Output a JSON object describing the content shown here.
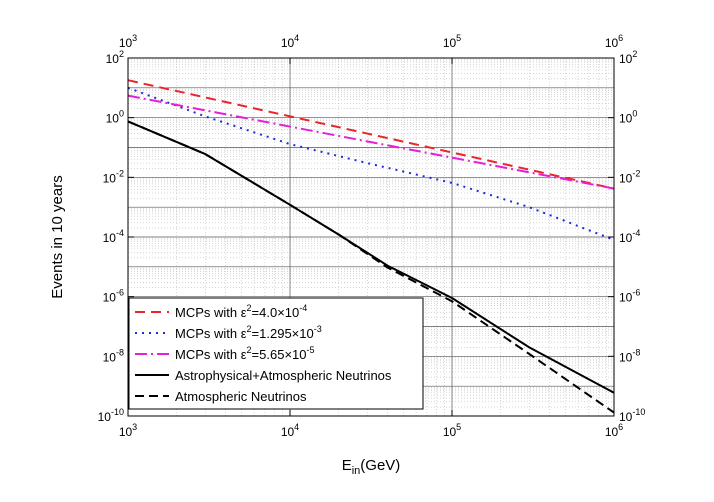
{
  "chart_data": {
    "type": "line",
    "xlabel_main": "E",
    "xlabel_sub": "in",
    "xlabel_unit": "(GeV)",
    "ylabel": "Events in 10 years",
    "x_scale": "log",
    "y_scale": "log",
    "xlim": [
      1000,
      1000000
    ],
    "ylim": [
      1e-10,
      100
    ],
    "grid": true,
    "legend_position": "lower-left",
    "x_ticks": [
      {
        "value": 1000,
        "base": "10",
        "exp": "3"
      },
      {
        "value": 10000,
        "base": "10",
        "exp": "4"
      },
      {
        "value": 100000,
        "base": "10",
        "exp": "5"
      },
      {
        "value": 1000000,
        "base": "10",
        "exp": "6"
      }
    ],
    "y_ticks": [
      {
        "value": 1e-10,
        "base": "10",
        "exp": "-10"
      },
      {
        "value": 1e-08,
        "base": "10",
        "exp": "-8"
      },
      {
        "value": 1e-06,
        "base": "10",
        "exp": "-6"
      },
      {
        "value": 0.0001,
        "base": "10",
        "exp": "-4"
      },
      {
        "value": 0.01,
        "base": "10",
        "exp": "-2"
      },
      {
        "value": 1,
        "base": "10",
        "exp": "0"
      },
      {
        "value": 100,
        "base": "10",
        "exp": "2"
      }
    ],
    "series": [
      {
        "legend_pre": "MCPs with ",
        "legend_eps": "ε",
        "legend_pow": "2",
        "legend_post": "=4.0×10",
        "legend_exp": "-4",
        "color": "#e8262b",
        "dash": "10,6",
        "x": [
          1000,
          1000000
        ],
        "y": [
          18,
          0.0042
        ]
      },
      {
        "legend_pre": "MCPs with ",
        "legend_eps": "ε",
        "legend_pow": "2",
        "legend_post": "=1.295×10",
        "legend_exp": "-3",
        "color": "#1f2bd8",
        "dash": "2,5",
        "x": [
          1000,
          3000,
          10000,
          30000,
          100000,
          300000,
          1000000
        ],
        "y": [
          10,
          1.1,
          0.13,
          0.03,
          0.0065,
          0.001,
          8e-05
        ]
      },
      {
        "legend_pre": "MCPs with ",
        "legend_eps": "ε",
        "legend_pow": "2",
        "legend_post": "=5.65×10",
        "legend_exp": "-5",
        "color": "#e61fd8",
        "dash": "12,4,2,4",
        "x": [
          1000,
          1000000
        ],
        "y": [
          5.5,
          0.0042
        ]
      },
      {
        "legend_text": "Astrophysical+Atmospheric Neutrinos",
        "color": "#000000",
        "dash": "",
        "x": [
          1000,
          3000,
          10000,
          20000,
          40000,
          100000,
          300000,
          1000000
        ],
        "y": [
          0.75,
          0.06,
          0.0012,
          0.00012,
          1.1e-05,
          9e-07,
          2e-08,
          6e-10
        ]
      },
      {
        "legend_text": "Atmospheric Neutrinos",
        "color": "#000000",
        "dash": "9,5",
        "x": [
          1000,
          3000,
          10000,
          20000,
          40000,
          100000,
          300000,
          1000000
        ],
        "y": [
          0.75,
          0.06,
          0.0012,
          0.00012,
          9.5e-06,
          7e-07,
          1.2e-08,
          1.3e-10
        ]
      }
    ]
  }
}
